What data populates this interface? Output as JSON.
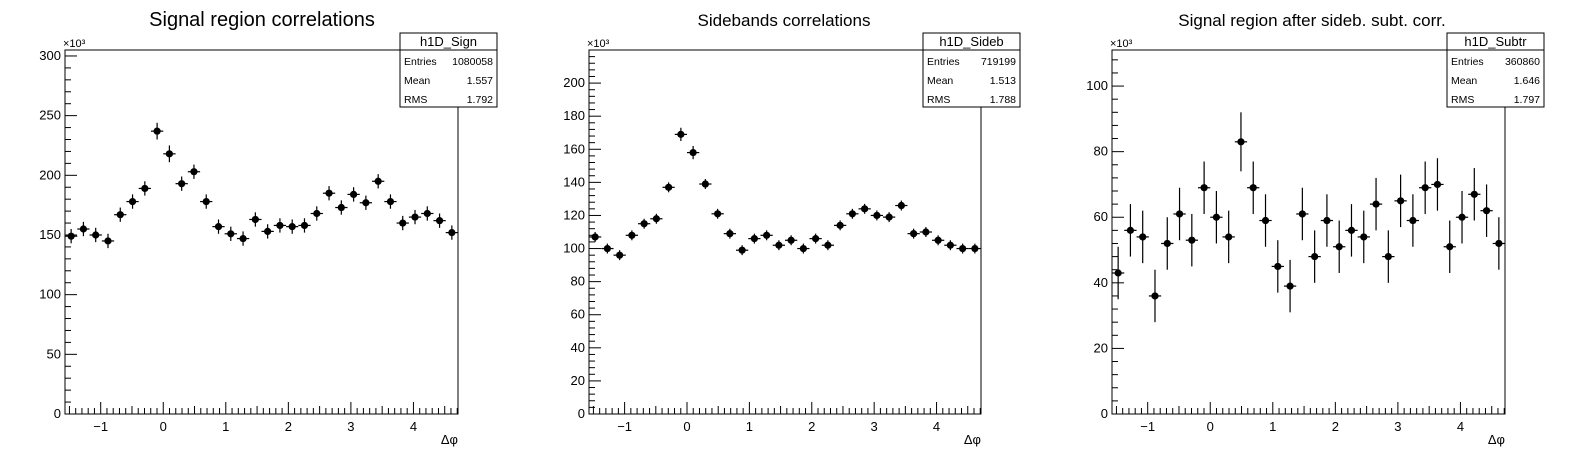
{
  "chart_data": [
    {
      "type": "scatter",
      "title": "Signal region correlations",
      "xlabel": "Δφ",
      "ylabel": "",
      "exponent_label": "×10³",
      "xlim": [
        -1.5708,
        4.7124
      ],
      "ylim": [
        0,
        305
      ],
      "xticks": [
        -1,
        0,
        1,
        2,
        3,
        4
      ],
      "yticks": [
        0,
        50,
        100,
        150,
        200,
        250,
        300
      ],
      "stats": {
        "name": "h1D_Sign",
        "rows": [
          {
            "label": "Entries",
            "value": "1080058"
          },
          {
            "label": "Mean",
            "value": "1.557"
          },
          {
            "label": "RMS",
            "value": "1.792"
          }
        ]
      },
      "values": [
        149,
        155,
        150,
        145,
        167,
        178,
        189,
        237,
        218,
        193,
        203,
        178,
        157,
        151,
        147,
        163,
        153,
        158,
        157,
        158,
        168,
        185,
        173,
        184,
        177,
        195,
        178,
        160,
        165,
        168,
        162,
        152
      ],
      "errors": [
        6,
        6,
        6,
        6,
        6,
        6,
        6,
        7,
        7,
        6,
        6,
        6,
        6,
        6,
        6,
        6,
        6,
        6,
        6,
        6,
        6,
        6,
        6,
        6,
        6,
        6,
        6,
        6,
        6,
        6,
        6,
        6
      ]
    },
    {
      "type": "scatter",
      "title": "Sidebands correlations",
      "xlabel": "Δφ",
      "ylabel": "",
      "exponent_label": "×10³",
      "xlim": [
        -1.5708,
        4.7124
      ],
      "ylim": [
        0,
        220
      ],
      "xticks": [
        -1,
        0,
        1,
        2,
        3,
        4
      ],
      "yticks": [
        0,
        20,
        40,
        60,
        80,
        100,
        120,
        140,
        160,
        180,
        200
      ],
      "stats": {
        "name": "h1D_Sideb",
        "rows": [
          {
            "label": "Entries",
            "value": "719199"
          },
          {
            "label": "Mean",
            "value": "1.513"
          },
          {
            "label": "RMS",
            "value": "1.788"
          }
        ]
      },
      "values": [
        107,
        100,
        96,
        108,
        115,
        118,
        137,
        169,
        158,
        139,
        121,
        109,
        99,
        106,
        108,
        102,
        105,
        100,
        106,
        102,
        114,
        121,
        124,
        120,
        119,
        126,
        109,
        110,
        105,
        102,
        100,
        100
      ],
      "errors": [
        3,
        3,
        3,
        3,
        3,
        3,
        3,
        4,
        4,
        3,
        3,
        3,
        3,
        3,
        3,
        3,
        3,
        3,
        3,
        3,
        3,
        3,
        3,
        3,
        3,
        3,
        3,
        3,
        3,
        3,
        3,
        3
      ]
    },
    {
      "type": "scatter",
      "title": "Signal region after sideb. subt. corr.",
      "xlabel": "Δφ",
      "ylabel": "",
      "exponent_label": "×10³",
      "xlim": [
        -1.5708,
        4.7124
      ],
      "ylim": [
        0,
        111
      ],
      "xticks": [
        -1,
        0,
        1,
        2,
        3,
        4
      ],
      "yticks": [
        0,
        20,
        40,
        60,
        80,
        100
      ],
      "stats": {
        "name": "h1D_Subtr",
        "rows": [
          {
            "label": "Entries",
            "value": "360860"
          },
          {
            "label": "Mean",
            "value": "1.646"
          },
          {
            "label": "RMS",
            "value": "1.797"
          }
        ]
      },
      "values": [
        43,
        56,
        54,
        36,
        52,
        61,
        53,
        69,
        60,
        54,
        83,
        69,
        59,
        45,
        39,
        61,
        48,
        59,
        51,
        56,
        54,
        64,
        48,
        65,
        59,
        69,
        70,
        51,
        60,
        67,
        62,
        52
      ],
      "errors": [
        8,
        8,
        8,
        8,
        8,
        8,
        8,
        8,
        8,
        8,
        9,
        8,
        8,
        8,
        8,
        8,
        8,
        8,
        8,
        8,
        8,
        8,
        8,
        8,
        8,
        8,
        8,
        8,
        8,
        8,
        8,
        8
      ]
    }
  ]
}
